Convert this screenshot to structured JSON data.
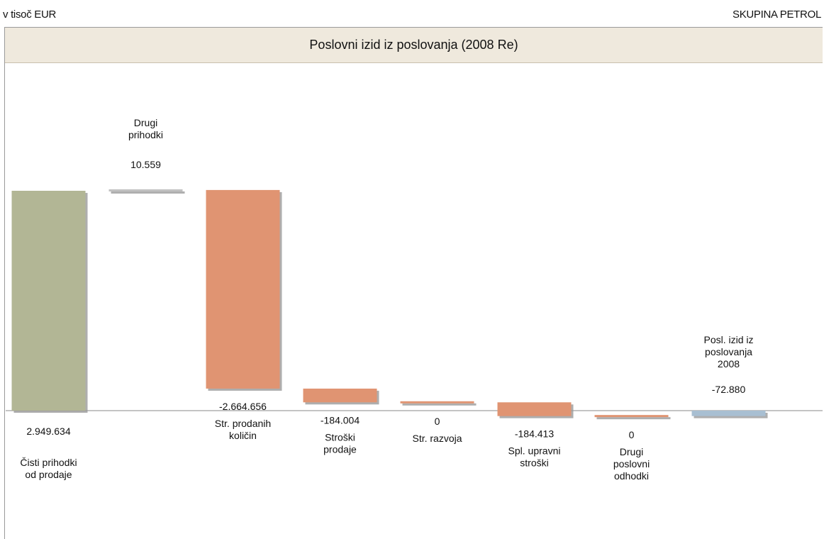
{
  "header": {
    "unit_label": "v tisoč EUR",
    "company": "SKUPINA PETROL"
  },
  "chart_data": {
    "type": "waterfall",
    "title": "Poslovni izid iz poslovanja (2008 Re)",
    "xlabel": "",
    "ylabel": "",
    "grid": false,
    "items": [
      {
        "label": [
          "Čisti prihodki",
          "od prodaje"
        ],
        "value_label": "2.949.634",
        "value": 2949634,
        "kind": "total"
      },
      {
        "label": [
          "Drugi",
          "prihodki"
        ],
        "value_label": "10.559",
        "value": 10559,
        "kind": "increase"
      },
      {
        "label": [
          "Str. prodanih",
          "količin"
        ],
        "value_label": "-2.664.656",
        "value": -2664656,
        "kind": "decrease"
      },
      {
        "label": [
          "Stroški",
          "prodaje"
        ],
        "value_label": "-184.004",
        "value": -184004,
        "kind": "decrease"
      },
      {
        "label": [
          "Str. razvoja"
        ],
        "value_label": "0",
        "value": 0,
        "kind": "decrease"
      },
      {
        "label": [
          "Spl. upravni",
          "stroški"
        ],
        "value_label": "-184.413",
        "value": -184413,
        "kind": "decrease"
      },
      {
        "label": [
          "Drugi",
          "poslovni",
          "odhodki"
        ],
        "value_label": "0",
        "value": 0,
        "kind": "decrease"
      },
      {
        "label": [
          "Posl. izid iz",
          "poslovanja",
          "2008"
        ],
        "value_label": "-72.880",
        "value": -72880,
        "kind": "result"
      }
    ],
    "colors": {
      "total": "#b2b695",
      "increase": "#c0c0c0",
      "decrease": "#e09472",
      "result": "#a8bfd2",
      "axis": "#888888",
      "shadow": "#9a9a9a"
    }
  }
}
